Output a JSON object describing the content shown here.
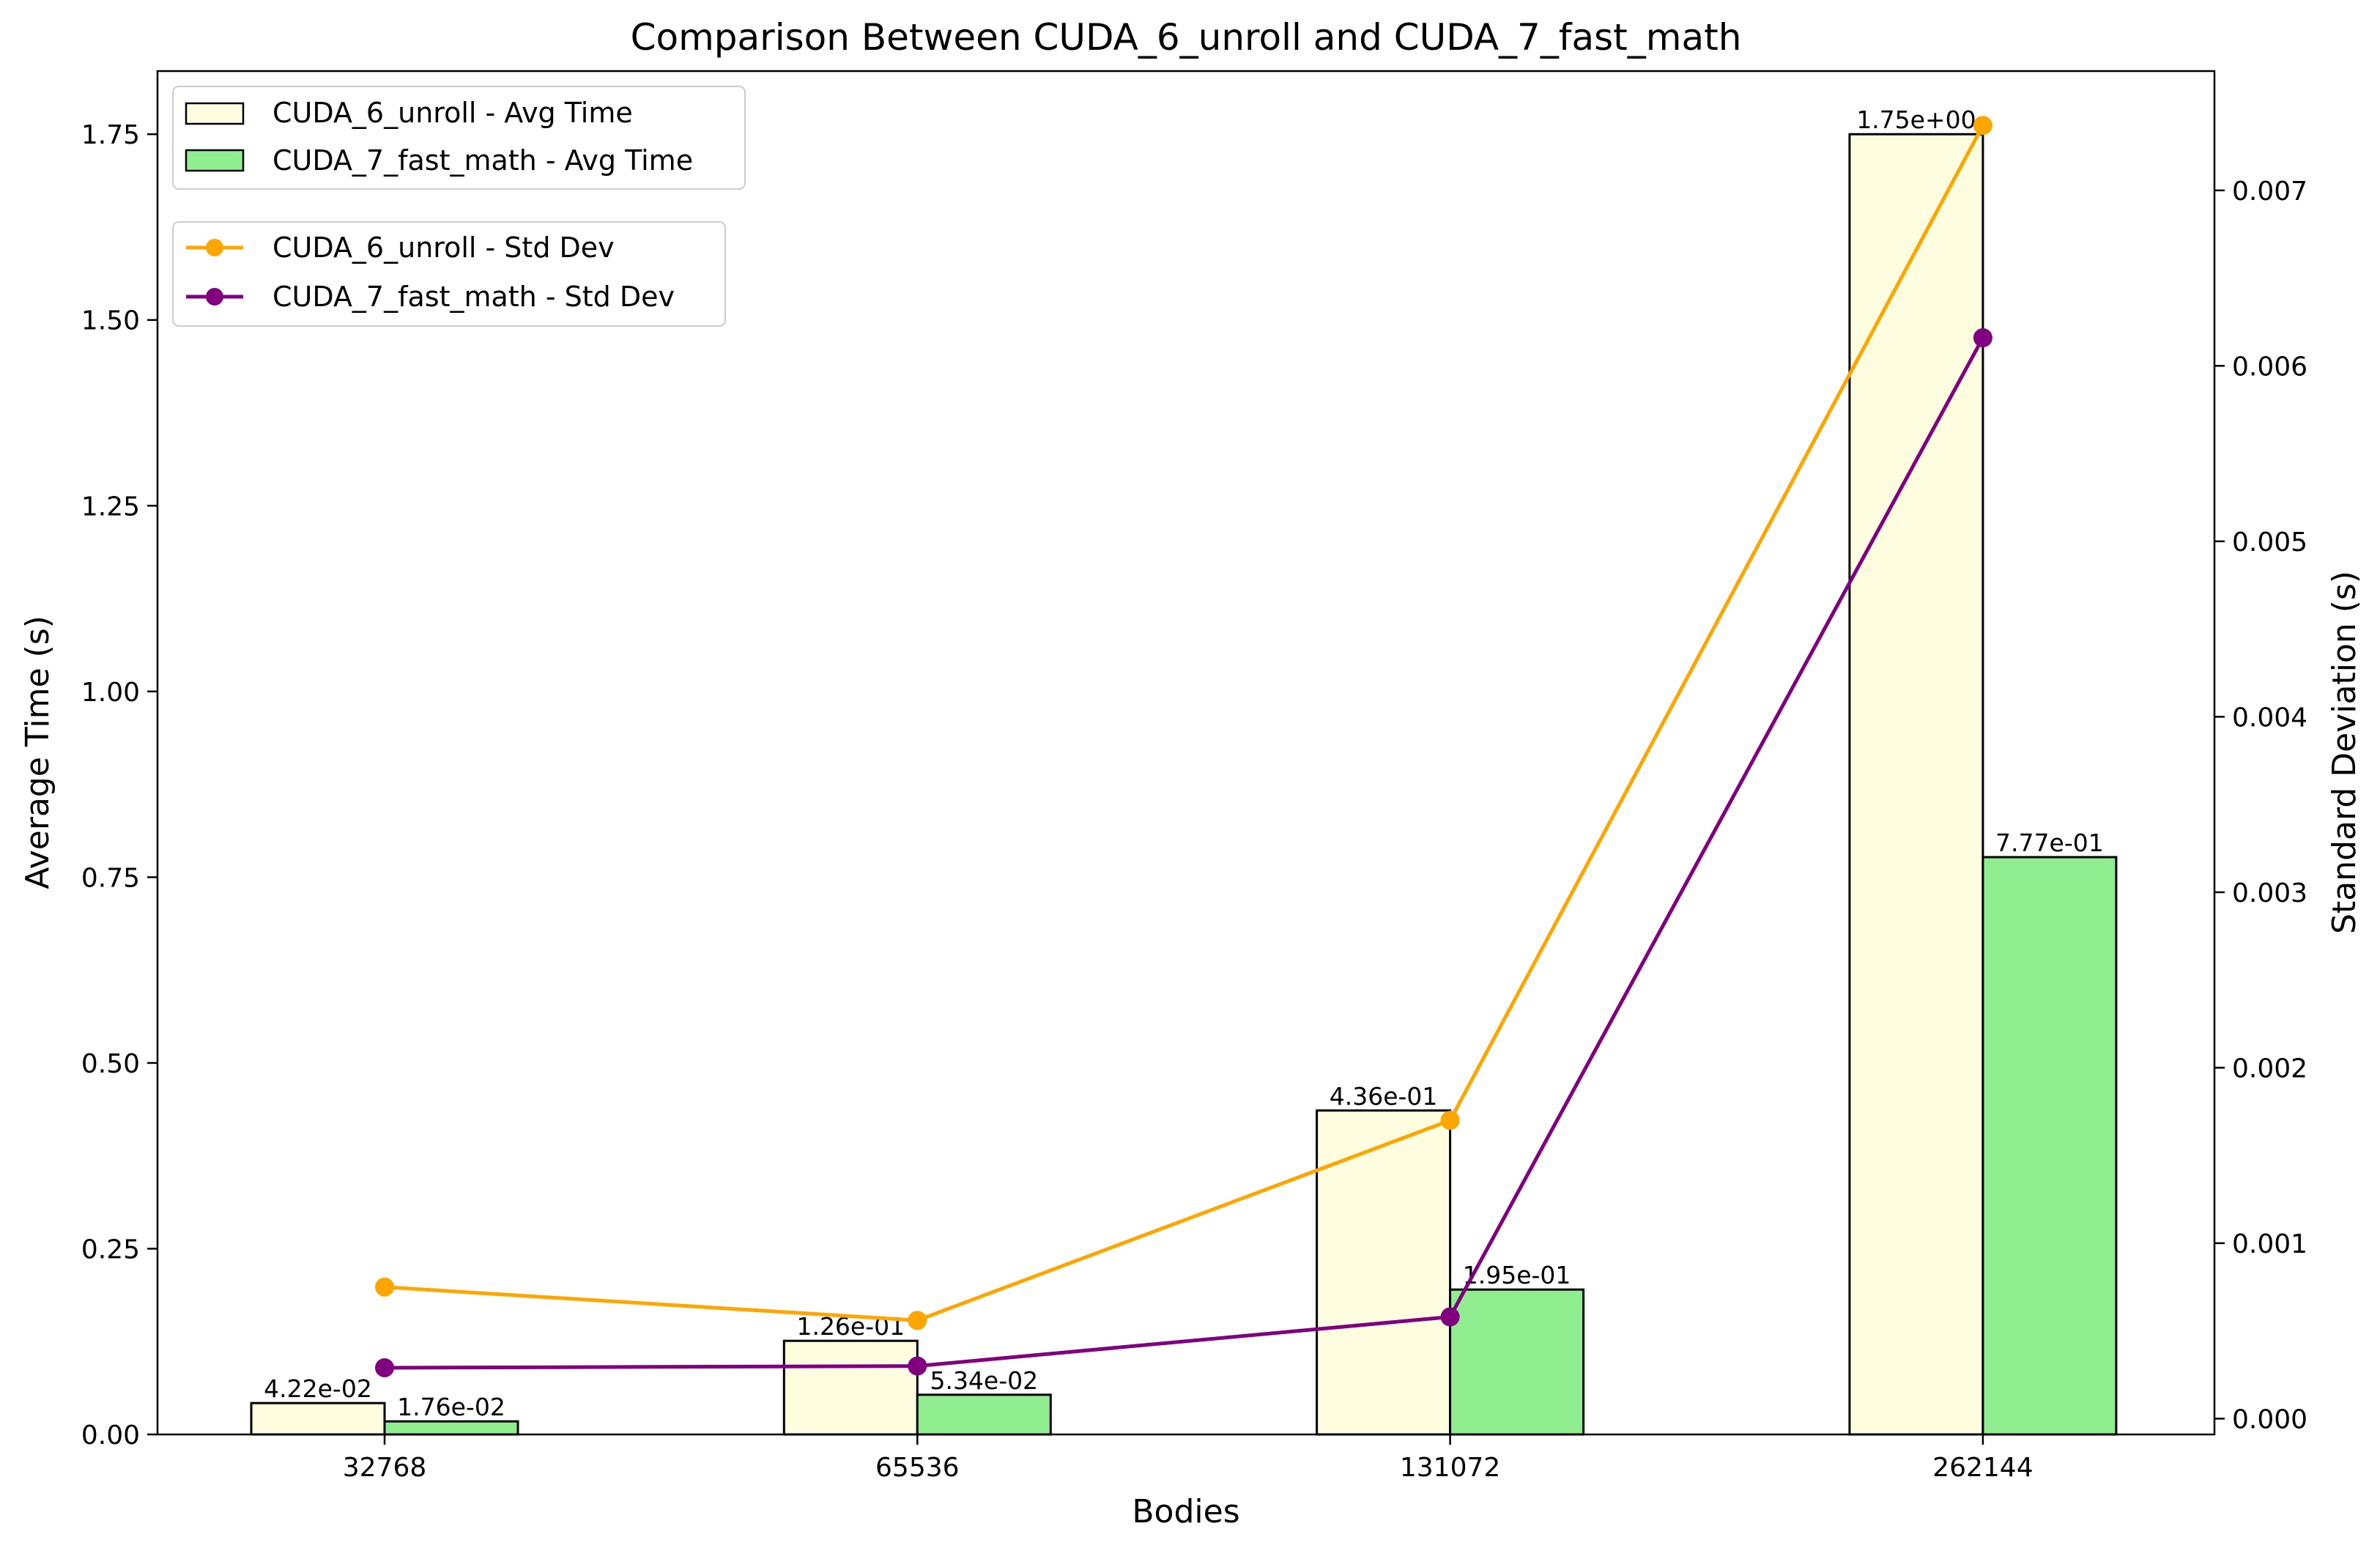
{
  "chart_data": {
    "type": "bar",
    "title": "Comparison Between CUDA_6_unroll and CUDA_7_fast_math",
    "xlabel": "Bodies",
    "ylabel": "Average Time (s)",
    "y2label": "Standard Deviation (s)",
    "categories": [
      "32768",
      "65536",
      "131072",
      "262144"
    ],
    "ylim": [
      0,
      1.835
    ],
    "y2lim": [
      -9e-05,
      0.00768
    ],
    "yticks": [
      "0.00",
      "0.25",
      "0.50",
      "0.75",
      "1.00",
      "1.25",
      "1.50",
      "1.75"
    ],
    "y2ticks": [
      "0.000",
      "0.001",
      "0.002",
      "0.003",
      "0.004",
      "0.005",
      "0.006",
      "0.007"
    ],
    "grid": false,
    "bar_series": [
      {
        "name": "CUDA_6_unroll - Avg Time",
        "values": [
          0.0422,
          0.126,
          0.436,
          1.75
        ],
        "labels": [
          "4.22e-02",
          "1.26e-01",
          "4.36e-01",
          "1.75e+00"
        ],
        "color": "#fffde0"
      },
      {
        "name": "CUDA_7_fast_math - Avg Time",
        "values": [
          0.0176,
          0.0534,
          0.195,
          0.777
        ],
        "labels": [
          "1.76e-02",
          "5.34e-02",
          "1.95e-01",
          "7.77e-01"
        ],
        "color": "#90ee90"
      }
    ],
    "line_series": [
      {
        "name": "CUDA_6_unroll - Std Dev",
        "values": [
          0.00075,
          0.00056,
          0.0017,
          0.00737
        ],
        "color": "#ffa500"
      },
      {
        "name": "CUDA_7_fast_math - Std Dev",
        "values": [
          0.00029,
          0.0003,
          0.00058,
          0.00616
        ],
        "color": "#800080"
      }
    ],
    "legends": [
      "upper-left (bars)",
      "upper-left below first (lines)"
    ]
  }
}
